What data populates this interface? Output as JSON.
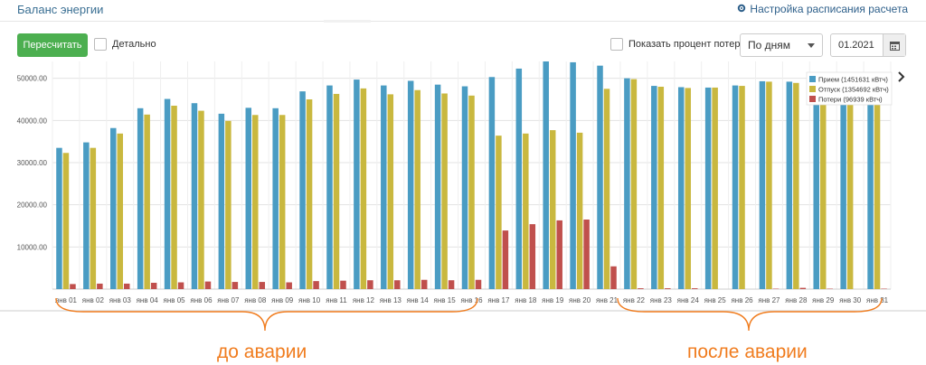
{
  "header": {
    "title": "Баланс энергии",
    "settings_label": "Настройка расписания расчета"
  },
  "toolbar": {
    "recalc_label": "Пересчитать",
    "detail_label": "Детально",
    "loss_pct_label": "Показать процент потерь",
    "period_value": "По дням",
    "date_value": "01.2021"
  },
  "annotations": {
    "before": "до аварии",
    "after": "после аварии"
  },
  "colors": {
    "priem": "#4a9cc3",
    "otpusk": "#c9b83f",
    "poteri": "#c0504d",
    "accent_btn": "#4caf50",
    "annotation": "#f07c1e"
  },
  "chart_data": {
    "type": "bar",
    "categories": [
      "янв 01",
      "янв 02",
      "янв 03",
      "янв 04",
      "янв 05",
      "янв 06",
      "янв 07",
      "янв 08",
      "янв 09",
      "янв 10",
      "янв 11",
      "янв 12",
      "янв 13",
      "янв 14",
      "янв 15",
      "янв 16",
      "янв 17",
      "янв 18",
      "янв 19",
      "янв 20",
      "янв 21",
      "янв 22",
      "янв 23",
      "янв 24",
      "янв 25",
      "янв 26",
      "янв 27",
      "янв 28",
      "янв 29",
      "янв 30",
      "янв 31"
    ],
    "series": [
      {
        "name": "Прием (1451631 кВтч)",
        "color": "#4a9cc3",
        "values": [
          33500,
          34800,
          38200,
          42900,
          45100,
          44100,
          41600,
          43000,
          42900,
          46900,
          48300,
          49700,
          48300,
          49400,
          48500,
          48100,
          50300,
          52300,
          54500,
          53800,
          53000,
          50000,
          48200,
          47900,
          47800,
          48300,
          49300,
          49200,
          48000,
          45800,
          45900
        ]
      },
      {
        "name": "Отпуск (1354692 кВтч)",
        "color": "#c9b83f",
        "values": [
          32300,
          33500,
          36900,
          41400,
          43500,
          42300,
          39900,
          41300,
          41300,
          45000,
          46300,
          47600,
          46200,
          47200,
          46400,
          45900,
          36400,
          36900,
          37700,
          37100,
          47500,
          49800,
          48000,
          47700,
          47800,
          48200,
          49200,
          48900,
          47900,
          45800,
          45800
        ]
      },
      {
        "name": "Потери (96939 кВтч)",
        "color": "#c0504d",
        "values": [
          1200,
          1300,
          1300,
          1500,
          1600,
          1800,
          1700,
          1700,
          1600,
          1900,
          2000,
          2100,
          2100,
          2200,
          2100,
          2200,
          13900,
          15400,
          16300,
          16500,
          5400,
          200,
          200,
          200,
          0,
          0,
          100,
          300,
          100,
          0,
          100
        ]
      }
    ],
    "yticks": [
      "10000.00",
      "20000.00",
      "30000.00",
      "40000.00",
      "50000.00"
    ],
    "ylim": [
      0,
      54000
    ],
    "grid": true,
    "legend_position": "top-right"
  }
}
